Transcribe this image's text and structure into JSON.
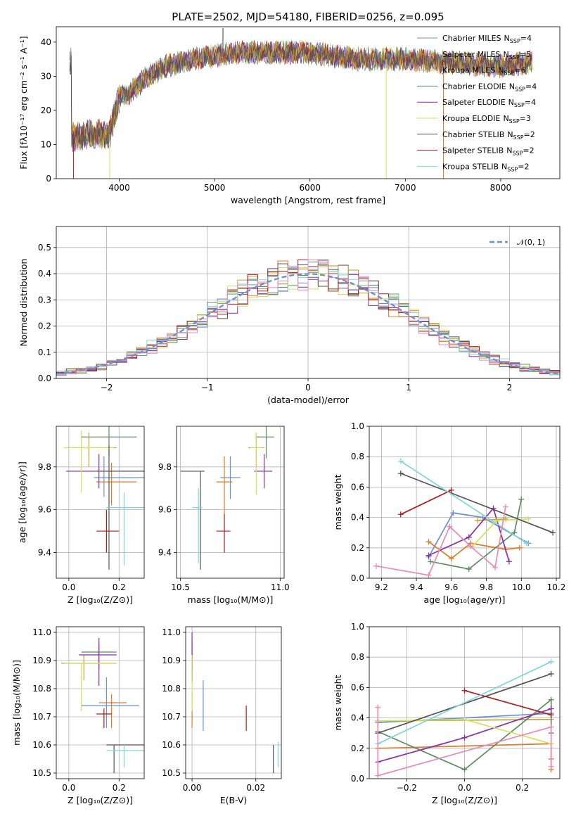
{
  "figure_title": "PLATE=2502, MJD=54180, FIBERID=0256, z=0.095",
  "models": [
    {
      "name": "Chabrier MILES",
      "n": "4",
      "color": "#6d8fd6"
    },
    {
      "name": "Salpeter MILES",
      "n": "5",
      "color": "#e07b2a"
    },
    {
      "name": "Kroupa MILES",
      "n": "6",
      "color": "#bfa534"
    },
    {
      "name": "Chabrier ELODIE",
      "n": "4",
      "color": "#5e8a62"
    },
    {
      "name": "Salpeter ELODIE",
      "n": "4",
      "color": "#8b2fa6"
    },
    {
      "name": "Kroupa ELODIE",
      "n": "3",
      "color": "#d2e25a"
    },
    {
      "name": "Chabrier STELIB",
      "n": "2",
      "color": "#555555"
    },
    {
      "name": "Salpeter STELIB",
      "n": "2",
      "color": "#b01c1c"
    },
    {
      "name": "Kroupa STELIB",
      "n": "2",
      "color": "#7fd6da"
    }
  ],
  "legend_nssp_label": "N",
  "legend_nssp_sub": "SSP",
  "chart_data": [
    {
      "id": "spectrum",
      "type": "line",
      "xlabel": "wavelength [Angstrom, rest frame]",
      "ylabel": "Flux [fλ10⁻¹⁷ erg cm⁻² s⁻¹ A⁻¹]",
      "xlim": [
        3340,
        8620
      ],
      "ylim": [
        0,
        44.5
      ],
      "xticks": [
        4000,
        5000,
        6000,
        7000,
        8000
      ],
      "yticks": [
        0,
        10,
        20,
        30,
        40
      ],
      "continuum_x": [
        3500,
        3700,
        3900,
        4000,
        4100,
        4300,
        4500,
        4800,
        5000,
        5300,
        5600,
        6000,
        6500,
        7000,
        7500,
        8000,
        8300
      ],
      "continuum_y": [
        12,
        13,
        13,
        24,
        25,
        30,
        33,
        35,
        36,
        37,
        37,
        37,
        35,
        35,
        34,
        33,
        34
      ],
      "legend": "top-right"
    },
    {
      "id": "residuals",
      "type": "bar",
      "xlabel": "(data-model)/error",
      "ylabel": "Normed distribution",
      "xlim": [
        -2.5,
        2.5
      ],
      "ylim": [
        0,
        0.58
      ],
      "xticks": [
        -2,
        -1,
        0,
        1,
        2
      ],
      "yticks": [
        0,
        0.1,
        0.2,
        0.3,
        0.4,
        0.5
      ],
      "curve_label": "𝒩(0, 1)",
      "curve_color": "#6d8fd6",
      "grid": true
    },
    {
      "id": "age_vs_Z",
      "type": "scatter",
      "xlabel": "Z [log₁₀(Z/Z⊙)]",
      "ylabel": "age  [log₁₀(age/yr)]",
      "xlim": [
        -0.05,
        0.3
      ],
      "ylim": [
        9.28,
        9.99
      ],
      "xticks": [
        0.0,
        0.2
      ],
      "yticks": [
        9.4,
        9.6,
        9.8
      ],
      "points": [
        [
          0.14,
          0.1,
          0.3,
          9.75,
          9.66,
          9.85
        ],
        [
          0.17,
          0.11,
          0.27,
          9.73,
          9.62,
          9.82
        ],
        [
          0.08,
          -0.02,
          0.19,
          9.89,
          9.8,
          9.96
        ],
        [
          0.16,
          0.05,
          0.27,
          9.94,
          9.85,
          9.99
        ],
        [
          0.12,
          -0.01,
          0.3,
          9.78,
          9.7,
          9.86
        ],
        [
          0.05,
          -0.02,
          0.18,
          9.89,
          9.68,
          9.97
        ],
        [
          0.16,
          0.11,
          0.3,
          9.78,
          9.32,
          9.9
        ],
        [
          0.15,
          0.11,
          0.2,
          9.5,
          9.4,
          9.6
        ],
        [
          0.22,
          0.15,
          0.3,
          9.61,
          9.34,
          9.68
        ]
      ],
      "grid": true
    },
    {
      "id": "age_vs_mass",
      "type": "scatter",
      "xlabel": "mass [log₁₀(M/M⊙)]",
      "ylabel": "",
      "xlim": [
        10.48,
        11.02
      ],
      "ylim": [
        9.28,
        9.99
      ],
      "xticks": [
        10.5,
        11.0
      ],
      "yticks": [
        9.4,
        9.6,
        9.8
      ],
      "points": [
        [
          10.75,
          10.7,
          10.8,
          9.75,
          9.65,
          9.85
        ],
        [
          10.72,
          10.68,
          10.76,
          9.73,
          9.58,
          9.85
        ],
        [
          10.88,
          10.84,
          10.92,
          9.89,
          9.8,
          9.96
        ],
        [
          10.93,
          10.88,
          10.97,
          9.94,
          9.84,
          9.99
        ],
        [
          10.92,
          10.87,
          10.96,
          9.78,
          9.7,
          9.86
        ],
        [
          10.88,
          10.85,
          10.91,
          9.89,
          9.67,
          9.96
        ],
        [
          10.6,
          10.5,
          10.62,
          9.78,
          9.32,
          9.78
        ],
        [
          10.72,
          10.68,
          10.75,
          9.5,
          9.4,
          9.58
        ],
        [
          10.59,
          10.56,
          10.61,
          9.61,
          9.35,
          9.7
        ]
      ],
      "grid": true
    },
    {
      "id": "weight_vs_age",
      "type": "line",
      "xlabel": "age  [log₁₀(age/yr)]",
      "ylabel": "mass weight",
      "xlim": [
        9.13,
        10.22
      ],
      "ylim": [
        0,
        1
      ],
      "xticks": [
        9.2,
        9.4,
        9.6,
        9.8,
        10.0,
        10.2
      ],
      "yticks": [
        0,
        0.2,
        0.4,
        0.6,
        0.8,
        1.0
      ],
      "series": [
        {
          "x": [
            9.47,
            9.61,
            9.78,
            10.04
          ],
          "y": [
            0.14,
            0.43,
            0.4,
            0.23
          ]
        },
        {
          "x": [
            9.47,
            9.6,
            9.71,
            9.91,
            9.99
          ],
          "y": [
            0.24,
            0.13,
            0.23,
            0.19,
            0.2
          ]
        },
        {
          "x": [
            9.75,
            9.91
          ],
          "y": [
            0.38,
            0.39
          ]
        },
        {
          "x": [
            9.48,
            9.7,
            9.96,
            10.0
          ],
          "y": [
            0.11,
            0.06,
            0.3,
            0.52
          ]
        },
        {
          "x": [
            9.47,
            9.7,
            9.84,
            9.93
          ],
          "y": [
            0.15,
            0.27,
            0.46,
            0.11
          ]
        },
        {
          "x": [
            9.72,
            9.86,
            10.04
          ],
          "y": [
            0.21,
            0.38,
            0.39
          ]
        },
        {
          "x": [
            9.31,
            10.18
          ],
          "y": [
            0.69,
            0.3
          ]
        },
        {
          "x": [
            9.31,
            9.6
          ],
          "y": [
            0.42,
            0.58
          ]
        },
        {
          "x": [
            9.31,
            10.03
          ],
          "y": [
            0.77,
            0.23
          ]
        },
        {
          "x": [
            9.17,
            9.47,
            9.59,
            9.71,
            9.85,
            9.91
          ],
          "y": [
            0.08,
            0.02,
            0.34,
            0.21,
            0.07,
            0.47
          ]
        }
      ],
      "extra_color": "#e889b8",
      "grid": true
    },
    {
      "id": "mass_vs_Z",
      "type": "scatter",
      "xlabel": "Z [log₁₀(Z/Z⊙)]",
      "ylabel": "mass [log₁₀(M/M⊙)]",
      "xlim": [
        -0.05,
        0.3
      ],
      "ylim": [
        10.48,
        11.02
      ],
      "xticks": [
        0.0,
        0.2
      ],
      "yticks": [
        10.5,
        10.6,
        10.7,
        10.8,
        10.9,
        11.0
      ],
      "points": [
        [
          0.15,
          0.05,
          0.28,
          10.74,
          10.66,
          10.84
        ],
        [
          0.17,
          0.12,
          0.23,
          10.75,
          10.66,
          10.78
        ],
        [
          0.06,
          -0.03,
          0.19,
          10.89,
          10.83,
          10.92
        ],
        [
          0.12,
          0.05,
          0.19,
          10.93,
          10.87,
          10.96
        ],
        [
          0.12,
          0.04,
          0.19,
          10.92,
          10.81,
          10.98
        ],
        [
          0.05,
          -0.02,
          0.19,
          10.89,
          10.72,
          10.89
        ],
        [
          0.18,
          0.15,
          0.3,
          10.6,
          10.5,
          10.6
        ],
        [
          0.14,
          0.11,
          0.17,
          10.71,
          10.66,
          10.73
        ],
        [
          0.22,
          0.15,
          0.3,
          10.58,
          10.52,
          10.6
        ]
      ],
      "grid": true
    },
    {
      "id": "mass_vs_ebv",
      "type": "scatter",
      "xlabel": "E(B-V)",
      "ylabel": "",
      "xlim": [
        -0.002,
        0.028
      ],
      "ylim": [
        10.48,
        11.02
      ],
      "xticks": [
        0.0,
        0.02
      ],
      "yticks": [
        10.5,
        10.6,
        10.7,
        10.8,
        10.9,
        11.0
      ],
      "points": [
        [
          0.0035,
          10.74,
          10.65,
          10.83
        ],
        [
          0.0,
          10.75,
          10.66,
          10.79
        ],
        [
          0.0,
          10.89,
          10.83,
          10.93
        ],
        [
          0.0,
          10.93,
          10.86,
          10.97
        ],
        [
          0.0,
          10.92,
          10.82,
          11.0
        ],
        [
          0.0,
          10.89,
          10.72,
          10.92
        ],
        [
          0.0255,
          10.6,
          10.5,
          10.6
        ],
        [
          0.017,
          10.71,
          10.65,
          10.74
        ],
        [
          0.027,
          10.58,
          10.52,
          10.61
        ]
      ],
      "grid": true
    },
    {
      "id": "weight_vs_Z",
      "type": "line",
      "xlabel": "Z [log₁₀(Z/Z⊙)]",
      "ylabel": "mass weight",
      "xlim": [
        -0.33,
        0.33
      ],
      "ylim": [
        0,
        1
      ],
      "xticks": [
        -0.2,
        0.0,
        0.2
      ],
      "yticks": [
        0,
        0.2,
        0.4,
        0.6,
        0.8,
        1.0
      ],
      "series": [
        {
          "x": [
            -0.3,
            0.3
          ],
          "y": [
            0.37,
            0.43
          ]
        },
        {
          "x": [
            -0.3,
            0.3,
            0.3,
            0.3
          ],
          "y": [
            0.2,
            0.23,
            0.13,
            0.06
          ]
        },
        {
          "x": [
            -0.3,
            0.3
          ],
          "y": [
            0.38,
            0.39
          ]
        },
        {
          "x": [
            -0.3,
            0.0,
            0.3,
            0.3
          ],
          "y": [
            0.31,
            0.06,
            0.52,
            0.3
          ]
        },
        {
          "x": [
            -0.3,
            0.0,
            0.3
          ],
          "y": [
            0.11,
            0.27,
            0.46
          ]
        },
        {
          "x": [
            -0.3,
            0.0,
            0.3
          ],
          "y": [
            0.38,
            0.39,
            0.23
          ]
        },
        {
          "x": [
            -0.3,
            0.3
          ],
          "y": [
            0.3,
            0.69
          ]
        },
        {
          "x": [
            0.0,
            0.3
          ],
          "y": [
            0.58,
            0.42
          ]
        },
        {
          "x": [
            -0.3,
            0.3
          ],
          "y": [
            0.23,
            0.77
          ]
        },
        {
          "x": [
            -0.3,
            -0.3,
            0.3,
            0.3
          ],
          "y": [
            0.47,
            0.02,
            0.34,
            0.08
          ]
        }
      ],
      "grid": true
    }
  ]
}
